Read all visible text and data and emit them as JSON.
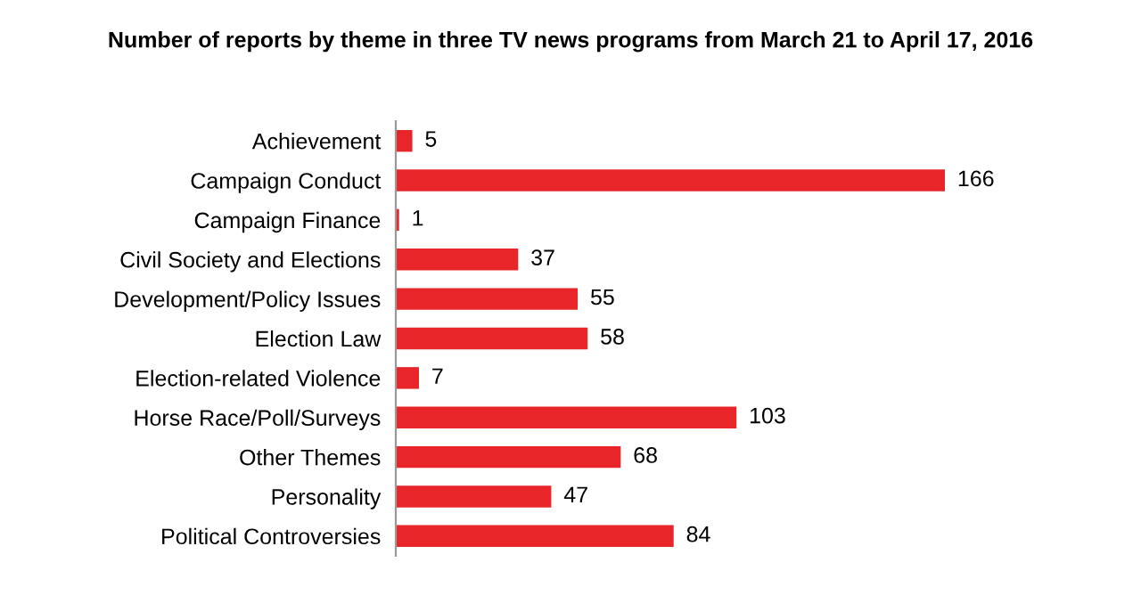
{
  "chart_data": {
    "type": "bar",
    "orientation": "horizontal",
    "title": "Number of reports by theme in three TV news programs from March 21 to April 17, 2016",
    "categories": [
      "Achievement",
      "Campaign Conduct",
      "Campaign Finance",
      "Civil Society and Elections",
      "Development/Policy Issues",
      "Election Law",
      "Election-related Violence",
      "Horse Race/Poll/Surveys",
      "Other Themes",
      "Personality",
      "Political Controversies"
    ],
    "values": [
      5,
      166,
      1,
      37,
      55,
      58,
      7,
      103,
      68,
      47,
      84
    ],
    "color": "#e8262a",
    "data_labels": true
  }
}
